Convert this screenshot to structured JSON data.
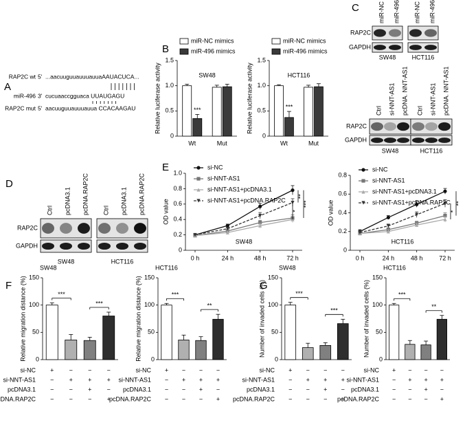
{
  "panels": [
    "A",
    "B",
    "C",
    "D",
    "E",
    "F",
    "G"
  ],
  "sequence": {
    "rows": [
      {
        "label": "RAP2C wt",
        "end": "5'",
        "seq": "...aacuuguuauuuauuaAAUACUCA..."
      },
      {
        "label": "miR-496",
        "end": "3'",
        "seq": "cucuaaccgguaca UUAUGAGU"
      },
      {
        "label": "RAP2C mut",
        "end": "5'",
        "seq": "aacuuguuauuuauua CCACAAGAU"
      }
    ]
  },
  "blots": [
    {
      "lanes": [
        "miR-NC mimics",
        "miR-496 mimics",
        "miR-NC mimics",
        "miR-496 mimics"
      ],
      "rows": [
        "RAP2C",
        "GAPDH"
      ],
      "groups": [
        "SW48",
        "HCT116"
      ]
    },
    {
      "lanes": [
        "Ctrl",
        "si-NNT-AS1",
        "pcDNA. NNT-AS1",
        "Ctrl",
        "si-NNT-AS1",
        "pcDNA. NNT-AS1"
      ],
      "rows": [
        "RAP2C",
        "GAPDH"
      ],
      "groups": [
        "SW48",
        "HCT116"
      ]
    },
    {
      "lanes": [
        "Ctrl",
        "pcDNA3.1",
        "pcDNA.RAP2C",
        "Ctrl",
        "pcDNA3.1",
        "pcDNA.RAP2C"
      ],
      "rows": [
        "RAP2C",
        "GAPDH"
      ],
      "groups": [
        "SW48",
        "HCT116"
      ]
    }
  ],
  "chart_data": [
    {
      "type": "bar",
      "title": "SW48",
      "y_label": "Relative luciferase activity",
      "categories": [
        "Wt",
        "Mut"
      ],
      "series": [
        {
          "name": "miR-NC mimics",
          "color": "#ffffff",
          "values": [
            1,
            0.97
          ],
          "errors": [
            0.03,
            0.04
          ]
        },
        {
          "name": "miR-496 mimics",
          "color": "#3a3a3a",
          "values": [
            0.35,
            0.98
          ],
          "errors": [
            0.08,
            0.05
          ]
        }
      ],
      "ylim": [
        0,
        1.5
      ],
      "yticks": [
        0,
        0.5,
        {
          "value": 1,
          "label": "1.0"
        },
        1.5
      ],
      "annotations": [
        "***"
      ],
      "legend": "top"
    },
    {
      "type": "bar",
      "title": "HCT116",
      "y_label": "Relative luciferase activity",
      "categories": [
        "Wt",
        "Mut"
      ],
      "series": [
        {
          "name": "miR-NC mimics",
          "color": "#ffffff",
          "values": [
            1,
            0.97
          ],
          "errors": [
            0.02,
            0.04
          ]
        },
        {
          "name": "miR-496 mimics",
          "color": "#3a3a3a",
          "values": [
            0.37,
            0.98
          ],
          "errors": [
            0.12,
            0.06
          ]
        }
      ],
      "ylim": [
        0,
        1.5
      ],
      "yticks": [
        0,
        0.5,
        {
          "value": 1,
          "label": "1.0"
        },
        1.5
      ],
      "annotations": [
        "***"
      ],
      "legend": "top"
    },
    {
      "type": "line",
      "title": "SW48",
      "y_label": "OD value",
      "x": [
        "0 h",
        "24 h",
        "48 h",
        "72 h"
      ],
      "series": [
        {
          "name": "si-NC",
          "color": "#111111",
          "marker": "circle",
          "values": [
            0.2,
            0.32,
            0.57,
            0.78
          ],
          "errors": [
            0.02,
            0.02,
            0.04,
            0.06
          ]
        },
        {
          "name": "si-NNT-AS1",
          "color": "#777777",
          "marker": "square",
          "values": [
            0.19,
            0.25,
            0.36,
            0.42
          ],
          "errors": [
            0.02,
            0.02,
            0.03,
            0.04
          ]
        },
        {
          "name": "si-NNT-AS1+pcDNA3.1",
          "color": "#aaaaaa",
          "marker": "triangle",
          "values": [
            0.19,
            0.23,
            0.32,
            0.4
          ],
          "errors": [
            0.02,
            0.02,
            0.03,
            0.04
          ]
        },
        {
          "name": "si-NNT-AS1+pcDNA.RAP2C",
          "color": "#333333",
          "marker": "down-triangle",
          "dashed": true,
          "values": [
            0.2,
            0.28,
            0.45,
            0.62
          ],
          "errors": [
            0.02,
            0.02,
            0.04,
            0.05
          ]
        }
      ],
      "ylim": [
        0,
        1
      ],
      "yticks": [
        0,
        0.2,
        0.4,
        0.6,
        0.8,
        {
          "value": 1,
          "label": "1.0"
        }
      ],
      "annotations": [
        "***",
        "**",
        "*"
      ],
      "legend": "top-left"
    },
    {
      "type": "line",
      "title": "HCT116",
      "y_label": "OD value",
      "x": [
        "0 h",
        "24 h",
        "48 h",
        "72 h"
      ],
      "series": [
        {
          "name": "si-NC",
          "color": "#111111",
          "marker": "circle",
          "values": [
            0.2,
            0.35,
            0.49,
            0.63
          ],
          "errors": [
            0.02,
            0.02,
            0.03,
            0.03
          ]
        },
        {
          "name": "si-NNT-AS1",
          "color": "#777777",
          "marker": "square",
          "values": [
            0.18,
            0.22,
            0.29,
            0.37
          ],
          "errors": [
            0.02,
            0.02,
            0.02,
            0.03
          ]
        },
        {
          "name": "si-NNT-AS1+pcDNA3.1",
          "color": "#aaaaaa",
          "marker": "triangle",
          "values": [
            0.18,
            0.2,
            0.27,
            0.33
          ],
          "errors": [
            0.02,
            0.02,
            0.02,
            0.03
          ]
        },
        {
          "name": "si-NNT-AS1+pcDNA.RAP2C",
          "color": "#333333",
          "marker": "down-triangle",
          "dashed": true,
          "values": [
            0.19,
            0.26,
            0.38,
            0.5
          ],
          "errors": [
            0.02,
            0.02,
            0.03,
            0.04
          ]
        }
      ],
      "ylim": [
        0,
        0.8
      ],
      "yticks": [
        0,
        0.2,
        0.4,
        0.6,
        0.8
      ],
      "annotations": [
        "**",
        "*"
      ],
      "legend": "top-left"
    },
    {
      "type": "bar",
      "title": "SW48",
      "y_label": "Relative migration distance (%)",
      "values": [
        100,
        36,
        35,
        80
      ],
      "errors": [
        4,
        10,
        6,
        7
      ],
      "colors": [
        "#ffffff",
        "#b0b0b0",
        "#808080",
        "#2e2e2e"
      ],
      "ylim": [
        0,
        150
      ],
      "yticks": [
        0,
        50,
        100,
        150
      ],
      "annotations": [
        "***",
        "***"
      ],
      "conditions": [
        {
          "name": "si-NC",
          "signs": [
            "+",
            "−",
            "−",
            "−"
          ]
        },
        {
          "name": "si-NNT-AS1",
          "signs": [
            "−",
            "+",
            "+",
            "+"
          ]
        },
        {
          "name": "pcDNA3.1",
          "signs": [
            "−",
            "−",
            "+",
            "−"
          ]
        },
        {
          "name": "pcDNA.RAP2C",
          "signs": [
            "−",
            "−",
            "−",
            "+"
          ]
        }
      ]
    },
    {
      "type": "bar",
      "title": "HCT116",
      "y_label": "Relative migration distance (%)",
      "values": [
        100,
        36,
        35,
        74
      ],
      "errors": [
        3,
        9,
        7,
        9
      ],
      "colors": [
        "#ffffff",
        "#b0b0b0",
        "#808080",
        "#2e2e2e"
      ],
      "ylim": [
        0,
        150
      ],
      "yticks": [
        0,
        50,
        100,
        150
      ],
      "annotations": [
        "***",
        "**"
      ],
      "conditions": [
        {
          "name": "si-NC",
          "signs": [
            "+",
            "−",
            "−",
            "−"
          ]
        },
        {
          "name": "si-NNT-AS1",
          "signs": [
            "−",
            "+",
            "+",
            "+"
          ]
        },
        {
          "name": "pcDNA3.1",
          "signs": [
            "−",
            "−",
            "+",
            "−"
          ]
        },
        {
          "name": "pcDNA.RAP2C",
          "signs": [
            "−",
            "−",
            "−",
            "+"
          ]
        }
      ]
    },
    {
      "type": "bar",
      "title": "SW48",
      "y_label": "Number of invaded cells (%)",
      "values": [
        100,
        22,
        26,
        66
      ],
      "errors": [
        5,
        8,
        5,
        8
      ],
      "colors": [
        "#ffffff",
        "#b0b0b0",
        "#808080",
        "#2e2e2e"
      ],
      "ylim": [
        0,
        150
      ],
      "yticks": [
        0,
        50,
        100,
        150
      ],
      "annotations": [
        "***",
        "***"
      ],
      "conditions": [
        {
          "name": "si-NC",
          "signs": [
            "+",
            "−",
            "−",
            "−"
          ]
        },
        {
          "name": "si-NNT-AS1",
          "signs": [
            "−",
            "+",
            "+",
            "+"
          ]
        },
        {
          "name": "pcDNA3.1",
          "signs": [
            "−",
            "−",
            "+",
            "−"
          ]
        },
        {
          "name": "pcDNA.RAP2C",
          "signs": [
            "−",
            "−",
            "−",
            "+"
          ]
        }
      ]
    },
    {
      "type": "bar",
      "title": "HCT116",
      "y_label": "Number of invaded cells (%)",
      "values": [
        100,
        28,
        27,
        74
      ],
      "errors": [
        3,
        7,
        7,
        7
      ],
      "colors": [
        "#ffffff",
        "#b0b0b0",
        "#808080",
        "#2e2e2e"
      ],
      "ylim": [
        0,
        150
      ],
      "yticks": [
        0,
        50,
        100,
        150
      ],
      "annotations": [
        "***",
        "**"
      ],
      "conditions": [
        {
          "name": "si-NC",
          "signs": [
            "+",
            "−",
            "−",
            "−"
          ]
        },
        {
          "name": "si-NNT-AS1",
          "signs": [
            "−",
            "+",
            "+",
            "+"
          ]
        },
        {
          "name": "pcDNA3.1",
          "signs": [
            "−",
            "−",
            "+",
            "−"
          ]
        },
        {
          "name": "pcDNA.RAP2C",
          "signs": [
            "−",
            "−",
            "−",
            "+"
          ]
        }
      ]
    }
  ]
}
